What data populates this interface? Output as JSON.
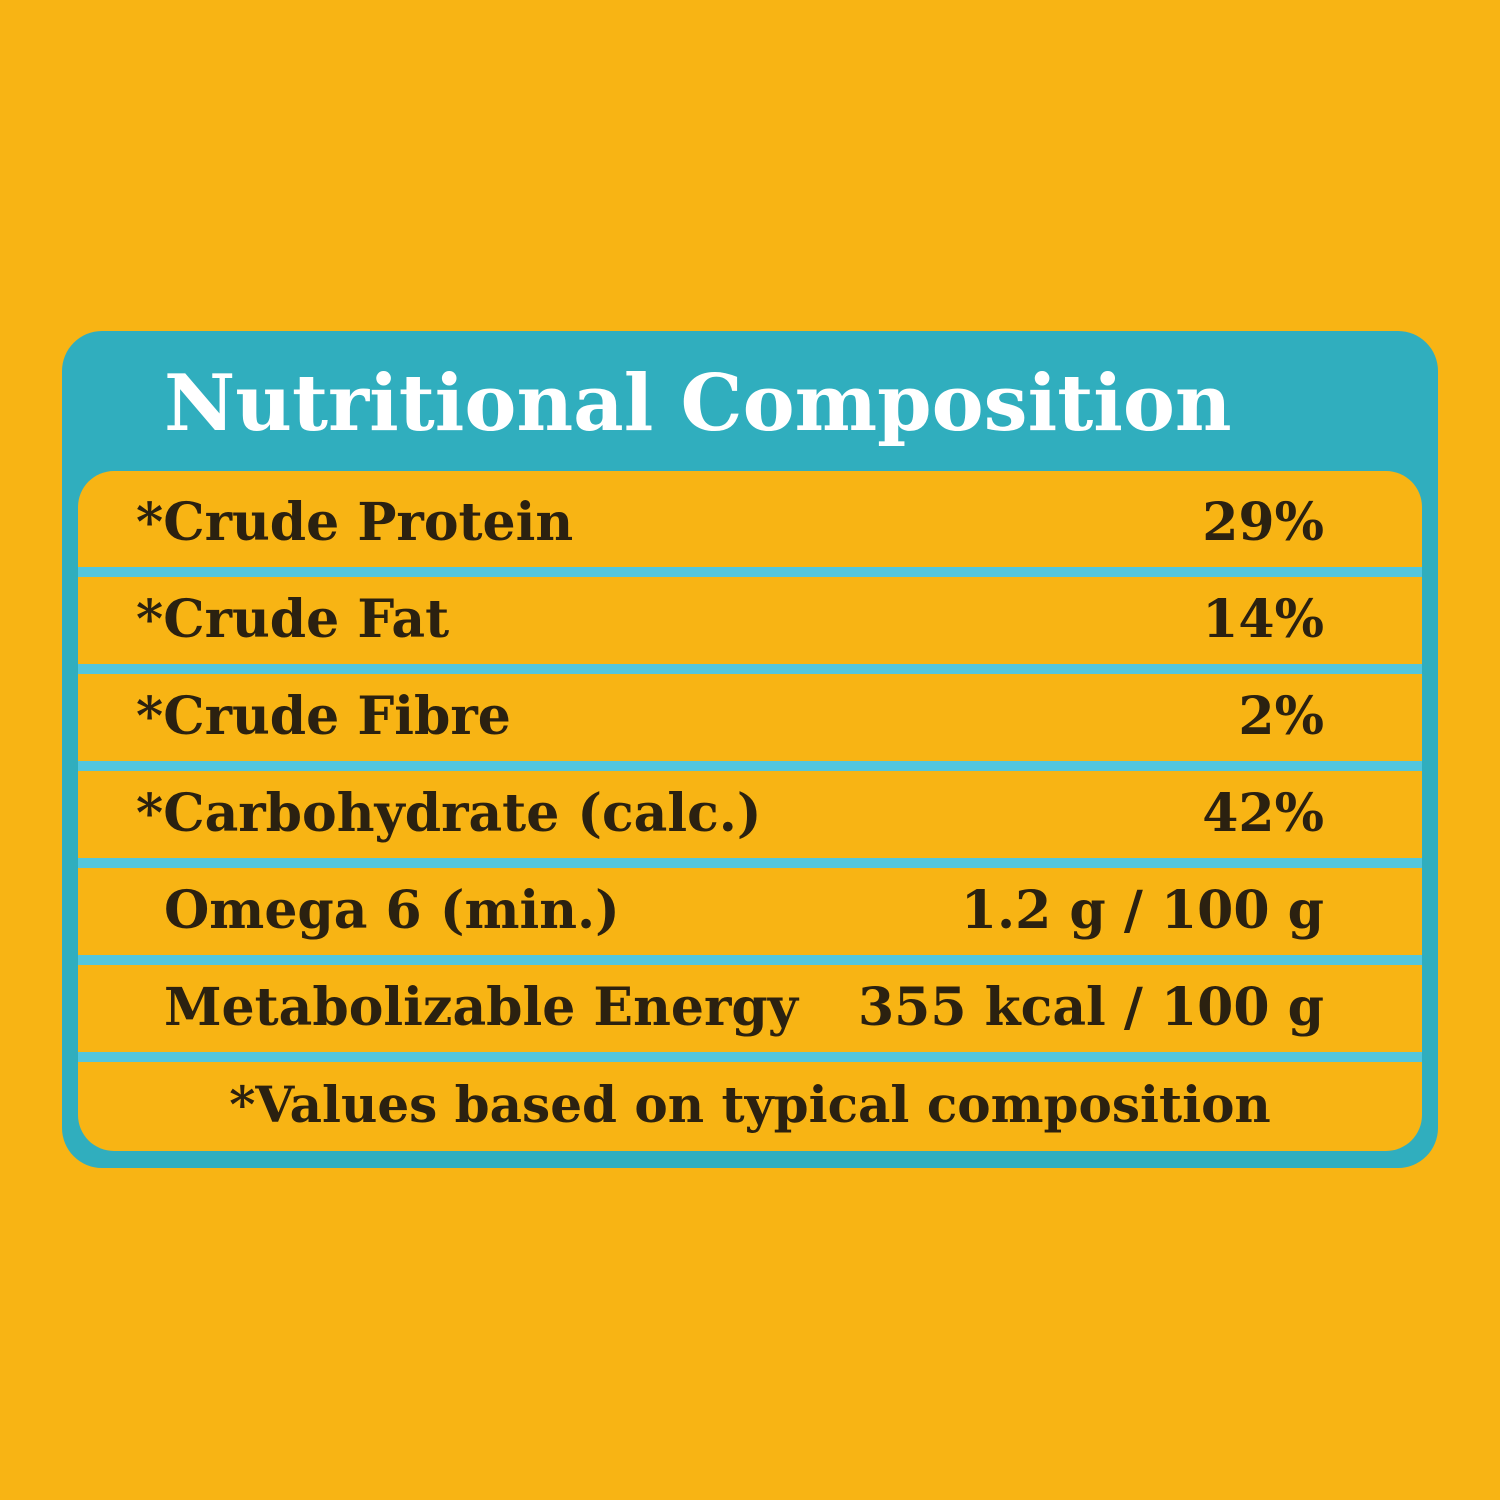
{
  "header": {
    "title": "Nutritional Composition"
  },
  "table": {
    "rows": [
      [
        "*Crude Protein",
        "29%"
      ],
      [
        "*Crude Fat",
        "14%"
      ],
      [
        "*Crude Fibre",
        "2%"
      ],
      [
        "*Carbohydrate (calc.)",
        "42%"
      ],
      [
        "Omega 6 (min.)",
        "1.2 g / 100 g"
      ],
      [
        "Metabolizable Energy",
        "355 kcal / 100 g"
      ]
    ]
  },
  "footnote": "*Values based on typical composition"
}
